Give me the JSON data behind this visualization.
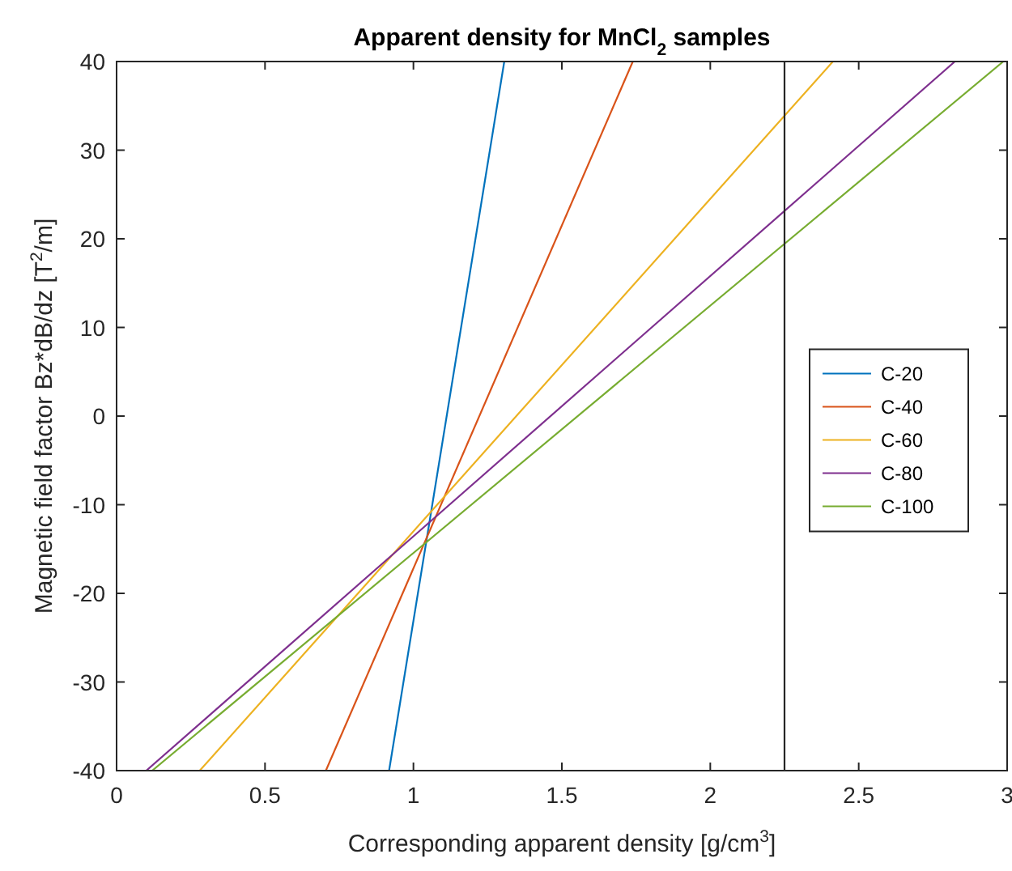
{
  "chart_data": {
    "type": "line",
    "title": "Apparent density for MnCl$_{2}$ samples",
    "xlabel": "Corresponding apparent density [g/cm$^{3}$]",
    "ylabel": "Magnetic field factor Bz*dB/dz [T$^{2}$/m]",
    "series": [
      {
        "name": "C-20",
        "color": "#0072bd",
        "x": [
          0.918,
          1.306
        ],
        "values": [
          -40,
          40
        ]
      },
      {
        "name": "C-40",
        "color": "#d95319",
        "x": [
          0.705,
          1.739
        ],
        "values": [
          -40,
          40
        ]
      },
      {
        "name": "C-60",
        "color": "#edb120",
        "x": [
          0.28,
          2.413
        ],
        "values": [
          -40,
          40
        ]
      },
      {
        "name": "C-80",
        "color": "#7e2f8e",
        "x": [
          0.1,
          2.824
        ],
        "values": [
          -40,
          40
        ]
      },
      {
        "name": "C-100",
        "color": "#77ac30",
        "x": [
          0.12,
          2.987
        ],
        "values": [
          -40,
          40
        ]
      }
    ],
    "xlim": [
      0,
      3
    ],
    "xticks": [
      0,
      0.5,
      1,
      1.5,
      2,
      2.5,
      3
    ],
    "ylim": [
      -40,
      40
    ],
    "yticks": [
      -40,
      -30,
      -20,
      -10,
      0,
      10,
      20,
      30,
      40
    ],
    "ref_lines": [
      {
        "axis": "x",
        "value": 2.25,
        "color": "#262626"
      }
    ],
    "grid": false,
    "legend": "right",
    "marker": "none",
    "line_style": "solid"
  }
}
